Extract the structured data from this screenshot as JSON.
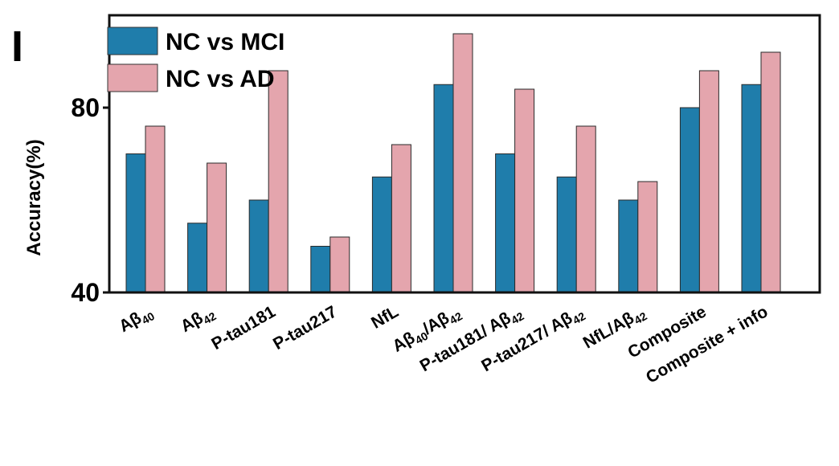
{
  "panel_letter": "I",
  "colors": {
    "nc_vs_mci": "#1f7dab",
    "nc_vs_ad": "#e4a5ad",
    "axis": "#111111"
  },
  "chart_data": {
    "type": "bar",
    "title": "",
    "ylabel": "Accuracy(%)",
    "xlabel": "",
    "ylim": [
      40,
      100
    ],
    "yticks": [
      40,
      80
    ],
    "grid": false,
    "legend_position": "top-left",
    "categories": [
      "Aβ40",
      "Aβ42",
      "P-tau181",
      "P-tau217",
      "NfL",
      "Aβ40/Aβ42",
      "P-tau181/ Aβ42",
      "P-tau217/ Aβ42",
      "NfL/Aβ42",
      "Composite",
      "Composite + info"
    ],
    "category_labels": [
      [
        {
          "t": "Aβ"
        },
        {
          "t": "40",
          "sub": true
        }
      ],
      [
        {
          "t": "Aβ"
        },
        {
          "t": "42",
          "sub": true
        }
      ],
      [
        {
          "t": "P-tau181"
        }
      ],
      [
        {
          "t": "P-tau217"
        }
      ],
      [
        {
          "t": "NfL"
        }
      ],
      [
        {
          "t": "Aβ"
        },
        {
          "t": "40",
          "sub": true
        },
        {
          "t": "/Aβ"
        },
        {
          "t": "42",
          "sub": true
        }
      ],
      [
        {
          "t": "P-tau181/ Aβ"
        },
        {
          "t": "42",
          "sub": true
        }
      ],
      [
        {
          "t": "P-tau217/ Aβ"
        },
        {
          "t": "42",
          "sub": true
        }
      ],
      [
        {
          "t": "NfL/Aβ"
        },
        {
          "t": "42",
          "sub": true
        }
      ],
      [
        {
          "t": "Composite"
        }
      ],
      [
        {
          "t": "Composite + info"
        }
      ]
    ],
    "series": [
      {
        "name": "NC vs MCI",
        "values": [
          70,
          55,
          60,
          50,
          65,
          85,
          70,
          65,
          60,
          80,
          85
        ]
      },
      {
        "name": "NC vs AD",
        "values": [
          76,
          68,
          88,
          52,
          72,
          96,
          84,
          76,
          64,
          88,
          92
        ]
      }
    ]
  }
}
